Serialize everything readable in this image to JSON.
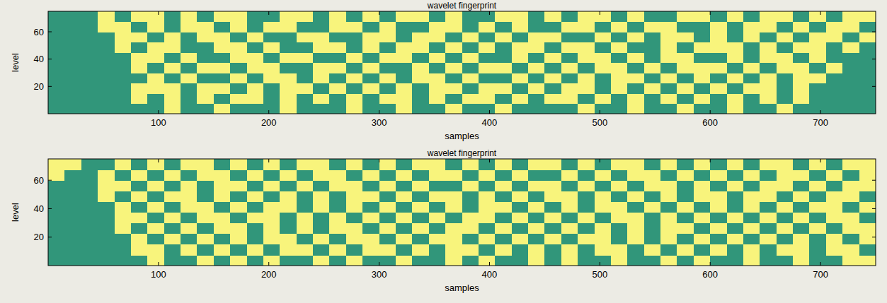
{
  "chart_data": [
    {
      "type": "heatmap",
      "title": "wavelet fingerprint",
      "x_label": "samples",
      "y_label": "level",
      "xlim": [
        0,
        750
      ],
      "ylim": [
        0,
        75
      ],
      "xticks": [
        100,
        200,
        300,
        400,
        500,
        600,
        700
      ],
      "yticks": [
        20,
        40,
        60
      ],
      "colors": [
        "#31967a",
        "#f8f47c"
      ],
      "x": [
        7.5,
        22.5,
        37.5,
        52.5,
        67.5,
        82.5,
        97.5,
        112.5,
        127.5,
        142.5,
        157.5,
        172.5,
        187.5,
        202.5,
        217.5,
        232.5,
        247.5,
        262.5,
        277.5,
        292.5,
        307.5,
        322.5,
        337.5,
        352.5,
        367.5,
        382.5,
        397.5,
        412.5,
        427.5,
        442.5,
        457.5,
        472.5,
        487.5,
        502.5,
        517.5,
        532.5,
        547.5,
        562.5,
        577.5,
        592.5,
        607.5,
        622.5,
        637.5,
        652.5,
        667.5,
        682.5,
        697.5,
        712.5,
        727.5,
        742.5
      ],
      "y": [
        3.75,
        11.25,
        18.75,
        26.25,
        33.75,
        41.25,
        48.75,
        56.25,
        63.75,
        71.25
      ],
      "cells": [
        [
          0,
          0,
          0,
          0,
          0,
          0,
          0,
          1,
          0,
          0,
          1,
          0,
          0,
          0,
          1,
          0,
          0,
          0,
          1,
          0,
          0,
          1,
          0,
          0,
          1,
          0,
          0,
          1,
          0,
          0,
          0,
          0,
          1,
          0,
          0,
          1,
          0,
          0,
          1,
          0,
          0,
          1,
          0,
          0,
          1,
          0,
          0,
          0,
          0,
          0
        ],
        [
          0,
          0,
          0,
          0,
          0,
          1,
          0,
          1,
          0,
          1,
          0,
          1,
          1,
          0,
          1,
          0,
          1,
          0,
          1,
          0,
          1,
          1,
          0,
          1,
          0,
          1,
          1,
          0,
          1,
          0,
          1,
          1,
          0,
          1,
          0,
          1,
          0,
          1,
          0,
          1,
          0,
          1,
          0,
          1,
          0,
          1,
          0,
          0,
          0,
          0
        ],
        [
          0,
          0,
          0,
          0,
          0,
          1,
          1,
          1,
          0,
          1,
          1,
          0,
          1,
          0,
          1,
          1,
          0,
          1,
          0,
          1,
          0,
          1,
          0,
          1,
          1,
          0,
          1,
          1,
          0,
          1,
          0,
          1,
          1,
          0,
          1,
          0,
          1,
          0,
          1,
          0,
          1,
          0,
          1,
          1,
          0,
          1,
          0,
          0,
          0,
          0
        ],
        [
          0,
          0,
          0,
          0,
          0,
          0,
          1,
          0,
          1,
          0,
          0,
          1,
          0,
          1,
          1,
          0,
          1,
          0,
          1,
          0,
          1,
          0,
          1,
          1,
          0,
          1,
          0,
          0,
          1,
          0,
          1,
          0,
          1,
          0,
          1,
          1,
          0,
          1,
          0,
          1,
          0,
          1,
          0,
          1,
          0,
          1,
          1,
          0,
          0,
          0
        ],
        [
          0,
          0,
          0,
          0,
          0,
          1,
          0,
          1,
          0,
          1,
          1,
          0,
          1,
          1,
          0,
          0,
          1,
          1,
          0,
          1,
          0,
          0,
          1,
          0,
          1,
          0,
          1,
          1,
          0,
          1,
          0,
          1,
          0,
          1,
          1,
          0,
          1,
          0,
          1,
          1,
          1,
          0,
          1,
          0,
          1,
          1,
          0,
          1,
          0,
          0
        ],
        [
          0,
          0,
          0,
          0,
          0,
          1,
          1,
          0,
          1,
          0,
          0,
          1,
          1,
          0,
          1,
          1,
          0,
          0,
          1,
          0,
          1,
          1,
          0,
          1,
          0,
          1,
          0,
          0,
          1,
          0,
          1,
          0,
          1,
          1,
          0,
          1,
          0,
          1,
          1,
          0,
          0,
          1,
          0,
          1,
          1,
          0,
          1,
          0,
          0,
          0
        ],
        [
          0,
          0,
          0,
          0,
          1,
          0,
          1,
          1,
          0,
          0,
          1,
          1,
          0,
          1,
          0,
          0,
          1,
          1,
          0,
          1,
          0,
          1,
          1,
          0,
          1,
          0,
          1,
          0,
          1,
          1,
          0,
          1,
          1,
          0,
          1,
          0,
          0,
          1,
          0,
          1,
          1,
          1,
          0,
          1,
          0,
          1,
          1,
          0,
          1,
          0
        ],
        [
          0,
          0,
          0,
          0,
          1,
          1,
          0,
          1,
          0,
          1,
          1,
          0,
          1,
          0,
          0,
          1,
          1,
          0,
          0,
          1,
          1,
          0,
          1,
          1,
          0,
          1,
          0,
          1,
          0,
          1,
          1,
          0,
          0,
          1,
          0,
          1,
          0,
          1,
          1,
          0,
          1,
          0,
          1,
          0,
          1,
          0,
          1,
          1,
          0,
          1
        ],
        [
          0,
          0,
          0,
          1,
          1,
          0,
          1,
          0,
          1,
          1,
          0,
          1,
          0,
          1,
          1,
          0,
          0,
          1,
          1,
          0,
          1,
          0,
          0,
          1,
          1,
          0,
          1,
          0,
          1,
          0,
          0,
          1,
          1,
          0,
          1,
          0,
          1,
          1,
          0,
          0,
          1,
          0,
          1,
          1,
          0,
          1,
          0,
          1,
          1,
          0
        ],
        [
          0,
          0,
          0,
          1,
          0,
          1,
          1,
          0,
          1,
          0,
          1,
          1,
          0,
          0,
          1,
          1,
          0,
          1,
          0,
          1,
          0,
          1,
          1,
          0,
          1,
          0,
          0,
          1,
          1,
          0,
          1,
          0,
          1,
          1,
          0,
          1,
          0,
          0,
          1,
          1,
          0,
          1,
          0,
          1,
          1,
          0,
          1,
          0,
          1,
          1
        ]
      ]
    },
    {
      "type": "heatmap",
      "title": "wavelet fingerprint",
      "x_label": "samples",
      "y_label": "level",
      "xlim": [
        0,
        750
      ],
      "ylim": [
        0,
        75
      ],
      "xticks": [
        100,
        200,
        300,
        400,
        500,
        600,
        700
      ],
      "yticks": [
        20,
        40,
        60
      ],
      "colors": [
        "#31967a",
        "#f8f47c"
      ],
      "x": [
        7.5,
        22.5,
        37.5,
        52.5,
        67.5,
        82.5,
        97.5,
        112.5,
        127.5,
        142.5,
        157.5,
        172.5,
        187.5,
        202.5,
        217.5,
        232.5,
        247.5,
        262.5,
        277.5,
        292.5,
        307.5,
        322.5,
        337.5,
        352.5,
        367.5,
        382.5,
        397.5,
        412.5,
        427.5,
        442.5,
        457.5,
        472.5,
        487.5,
        502.5,
        517.5,
        532.5,
        547.5,
        562.5,
        577.5,
        592.5,
        607.5,
        622.5,
        637.5,
        652.5,
        667.5,
        682.5,
        697.5,
        712.5,
        727.5,
        742.5
      ],
      "y": [
        3.75,
        11.25,
        18.75,
        26.25,
        33.75,
        41.25,
        48.75,
        56.25,
        63.75,
        71.25
      ],
      "cells": [
        [
          0,
          0,
          0,
          0,
          0,
          0,
          1,
          0,
          0,
          1,
          0,
          1,
          0,
          1,
          0,
          0,
          1,
          0,
          1,
          0,
          0,
          1,
          0,
          0,
          1,
          0,
          1,
          0,
          0,
          1,
          0,
          1,
          0,
          0,
          1,
          0,
          0,
          1,
          0,
          1,
          0,
          0,
          1,
          0,
          0,
          1,
          0,
          0,
          1,
          1
        ],
        [
          0,
          0,
          0,
          0,
          0,
          1,
          1,
          0,
          1,
          0,
          1,
          0,
          1,
          0,
          1,
          1,
          0,
          1,
          0,
          1,
          1,
          0,
          1,
          0,
          1,
          1,
          0,
          1,
          0,
          1,
          0,
          1,
          0,
          1,
          1,
          0,
          1,
          0,
          1,
          0,
          1,
          0,
          1,
          0,
          1,
          1,
          0,
          1,
          1,
          0
        ],
        [
          0,
          0,
          0,
          0,
          0,
          1,
          0,
          1,
          0,
          1,
          0,
          1,
          0,
          1,
          1,
          0,
          1,
          0,
          1,
          1,
          0,
          1,
          0,
          1,
          1,
          0,
          1,
          0,
          1,
          0,
          1,
          0,
          1,
          1,
          0,
          1,
          0,
          1,
          0,
          1,
          0,
          1,
          0,
          1,
          0,
          1,
          0,
          1,
          0,
          1
        ],
        [
          0,
          0,
          0,
          0,
          1,
          0,
          1,
          0,
          1,
          0,
          1,
          1,
          0,
          1,
          0,
          1,
          0,
          1,
          1,
          0,
          1,
          0,
          1,
          0,
          1,
          1,
          0,
          1,
          0,
          1,
          0,
          1,
          0,
          1,
          0,
          1,
          0,
          1,
          1,
          0,
          1,
          0,
          1,
          0,
          1,
          0,
          1,
          0,
          1,
          1
        ],
        [
          0,
          0,
          0,
          0,
          1,
          1,
          0,
          1,
          0,
          1,
          1,
          0,
          1,
          1,
          0,
          1,
          0,
          1,
          0,
          1,
          0,
          1,
          0,
          1,
          0,
          1,
          1,
          0,
          1,
          0,
          1,
          0,
          1,
          0,
          1,
          1,
          0,
          1,
          0,
          1,
          0,
          1,
          0,
          1,
          0,
          1,
          0,
          1,
          1,
          0
        ],
        [
          0,
          0,
          0,
          0,
          1,
          0,
          1,
          0,
          1,
          1,
          0,
          1,
          0,
          1,
          1,
          0,
          1,
          0,
          1,
          0,
          1,
          0,
          1,
          0,
          1,
          0,
          1,
          1,
          0,
          1,
          0,
          1,
          0,
          1,
          1,
          0,
          1,
          0,
          1,
          0,
          1,
          0,
          1,
          0,
          1,
          0,
          1,
          1,
          0,
          1
        ],
        [
          0,
          0,
          0,
          1,
          0,
          1,
          0,
          1,
          1,
          0,
          1,
          0,
          1,
          0,
          1,
          0,
          1,
          0,
          1,
          1,
          0,
          1,
          0,
          1,
          1,
          0,
          1,
          0,
          1,
          0,
          1,
          1,
          0,
          1,
          0,
          1,
          0,
          1,
          0,
          1,
          1,
          0,
          1,
          1,
          0,
          1,
          0,
          1,
          1,
          0
        ],
        [
          0,
          0,
          0,
          1,
          1,
          0,
          1,
          0,
          1,
          0,
          1,
          1,
          0,
          1,
          0,
          1,
          0,
          1,
          1,
          0,
          1,
          0,
          1,
          0,
          0,
          1,
          0,
          1,
          0,
          1,
          1,
          0,
          1,
          0,
          1,
          0,
          1,
          1,
          0,
          1,
          0,
          1,
          0,
          1,
          1,
          0,
          1,
          0,
          1,
          1
        ],
        [
          1,
          0,
          0,
          1,
          0,
          1,
          0,
          1,
          0,
          1,
          1,
          0,
          1,
          0,
          1,
          0,
          1,
          1,
          0,
          1,
          0,
          1,
          0,
          1,
          1,
          0,
          1,
          0,
          1,
          0,
          0,
          1,
          0,
          1,
          0,
          1,
          1,
          0,
          1,
          0,
          1,
          0,
          1,
          0,
          1,
          1,
          0,
          1,
          0,
          1
        ],
        [
          1,
          1,
          0,
          0,
          1,
          0,
          1,
          0,
          1,
          1,
          0,
          1,
          0,
          1,
          0,
          1,
          1,
          0,
          1,
          0,
          1,
          0,
          1,
          1,
          0,
          1,
          0,
          1,
          0,
          1,
          1,
          0,
          1,
          0,
          1,
          1,
          0,
          1,
          0,
          1,
          0,
          1,
          0,
          1,
          1,
          0,
          1,
          0,
          1,
          1
        ]
      ]
    }
  ]
}
